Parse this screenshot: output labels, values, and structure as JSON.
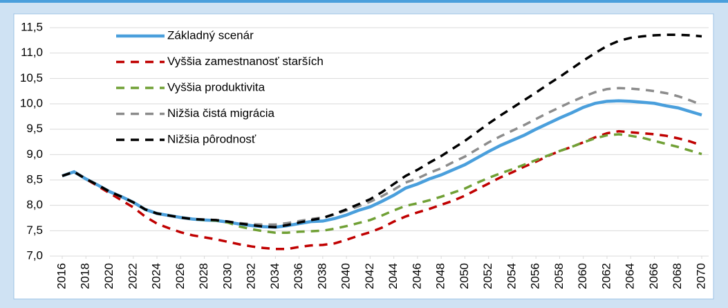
{
  "chart_data": {
    "type": "line",
    "x": [
      2016,
      2017,
      2018,
      2019,
      2020,
      2021,
      2022,
      2023,
      2024,
      2025,
      2026,
      2027,
      2028,
      2029,
      2030,
      2031,
      2032,
      2033,
      2034,
      2035,
      2036,
      2037,
      2038,
      2039,
      2040,
      2041,
      2042,
      2043,
      2044,
      2045,
      2046,
      2047,
      2048,
      2049,
      2050,
      2051,
      2052,
      2053,
      2054,
      2055,
      2056,
      2057,
      2058,
      2059,
      2060,
      2061,
      2062,
      2063,
      2064,
      2065,
      2066,
      2067,
      2068,
      2069,
      2070
    ],
    "xlim": [
      2016,
      2070
    ],
    "xticks": [
      2016,
      2018,
      2020,
      2022,
      2024,
      2026,
      2028,
      2030,
      2032,
      2034,
      2036,
      2038,
      2040,
      2042,
      2044,
      2046,
      2048,
      2050,
      2052,
      2054,
      2056,
      2058,
      2060,
      2062,
      2064,
      2066,
      2068,
      2070
    ],
    "ylim": [
      7.0,
      11.5
    ],
    "yticks": [
      {
        "value": 7.0,
        "label": "7,0"
      },
      {
        "value": 7.5,
        "label": "7,5"
      },
      {
        "value": 8.0,
        "label": "8,0"
      },
      {
        "value": 8.5,
        "label": "8,5"
      },
      {
        "value": 9.0,
        "label": "9,0"
      },
      {
        "value": 9.5,
        "label": "9,5"
      },
      {
        "value": 10.0,
        "label": "10,0"
      },
      {
        "value": 10.5,
        "label": "10,5"
      },
      {
        "value": 11.0,
        "label": "11,0"
      },
      {
        "value": 11.5,
        "label": "11,5"
      }
    ],
    "grid": true,
    "legend": "top-left",
    "series": [
      {
        "name": "Základný scenár",
        "color": "#4a9fdc",
        "style": "solid",
        "values": [
          8.58,
          8.66,
          8.52,
          8.4,
          8.27,
          8.17,
          8.06,
          7.92,
          7.84,
          7.8,
          7.76,
          7.73,
          7.71,
          7.7,
          7.67,
          7.63,
          7.6,
          7.58,
          7.57,
          7.6,
          7.64,
          7.68,
          7.69,
          7.74,
          7.81,
          7.9,
          7.97,
          8.08,
          8.2,
          8.34,
          8.42,
          8.52,
          8.6,
          8.7,
          8.8,
          8.93,
          9.06,
          9.18,
          9.28,
          9.38,
          9.5,
          9.61,
          9.72,
          9.82,
          9.93,
          10.01,
          10.05,
          10.06,
          10.05,
          10.03,
          10.01,
          9.96,
          9.92,
          9.85,
          9.78
        ]
      },
      {
        "name": "Vyššia zamestnanosť starších",
        "color": "#c00000",
        "style": "dashed",
        "values": [
          8.58,
          8.66,
          8.52,
          8.38,
          8.24,
          8.1,
          7.96,
          7.78,
          7.64,
          7.55,
          7.47,
          7.41,
          7.37,
          7.33,
          7.28,
          7.23,
          7.19,
          7.16,
          7.14,
          7.14,
          7.18,
          7.21,
          7.22,
          7.25,
          7.32,
          7.4,
          7.47,
          7.56,
          7.68,
          7.78,
          7.86,
          7.93,
          8.01,
          8.09,
          8.19,
          8.31,
          8.43,
          8.55,
          8.65,
          8.76,
          8.86,
          8.97,
          9.07,
          9.15,
          9.24,
          9.34,
          9.42,
          9.46,
          9.44,
          9.42,
          9.4,
          9.37,
          9.32,
          9.26,
          9.18
        ]
      },
      {
        "name": "Vyššia produktivita",
        "color": "#70a035",
        "style": "dashed",
        "values": [
          8.58,
          8.66,
          8.52,
          8.4,
          8.27,
          8.17,
          8.06,
          7.92,
          7.84,
          7.8,
          7.76,
          7.73,
          7.71,
          7.7,
          7.66,
          7.58,
          7.53,
          7.49,
          7.46,
          7.46,
          7.48,
          7.49,
          7.5,
          7.54,
          7.59,
          7.65,
          7.71,
          7.8,
          7.9,
          7.99,
          8.04,
          8.1,
          8.17,
          8.25,
          8.33,
          8.44,
          8.54,
          8.63,
          8.71,
          8.8,
          8.89,
          8.98,
          9.07,
          9.15,
          9.24,
          9.32,
          9.38,
          9.4,
          9.37,
          9.33,
          9.27,
          9.21,
          9.15,
          9.08,
          9.01
        ]
      },
      {
        "name": "Nižšia čistá migrácia",
        "color": "#8c8c8c",
        "style": "dashed",
        "values": [
          8.58,
          8.66,
          8.52,
          8.4,
          8.27,
          8.17,
          8.06,
          7.92,
          7.84,
          7.8,
          7.76,
          7.73,
          7.72,
          7.71,
          7.68,
          7.65,
          7.63,
          7.62,
          7.62,
          7.65,
          7.69,
          7.73,
          7.76,
          7.82,
          7.9,
          7.98,
          8.07,
          8.18,
          8.31,
          8.45,
          8.53,
          8.64,
          8.73,
          8.85,
          8.96,
          9.1,
          9.24,
          9.36,
          9.47,
          9.58,
          9.7,
          9.82,
          9.93,
          10.04,
          10.14,
          10.23,
          10.29,
          10.31,
          10.3,
          10.28,
          10.25,
          10.21,
          10.15,
          10.07,
          9.98
        ]
      },
      {
        "name": "Nižšia pôrodnosť",
        "color": "#000000",
        "style": "dashed",
        "values": [
          8.58,
          8.66,
          8.52,
          8.4,
          8.27,
          8.17,
          8.06,
          7.92,
          7.84,
          7.8,
          7.76,
          7.73,
          7.72,
          7.71,
          7.68,
          7.64,
          7.61,
          7.58,
          7.57,
          7.61,
          7.66,
          7.71,
          7.75,
          7.83,
          7.92,
          8.02,
          8.12,
          8.26,
          8.42,
          8.58,
          8.7,
          8.84,
          8.97,
          9.12,
          9.27,
          9.44,
          9.61,
          9.77,
          9.92,
          10.07,
          10.22,
          10.38,
          10.53,
          10.69,
          10.85,
          11.0,
          11.14,
          11.24,
          11.3,
          11.33,
          11.35,
          11.36,
          11.36,
          11.35,
          11.33
        ]
      }
    ]
  }
}
